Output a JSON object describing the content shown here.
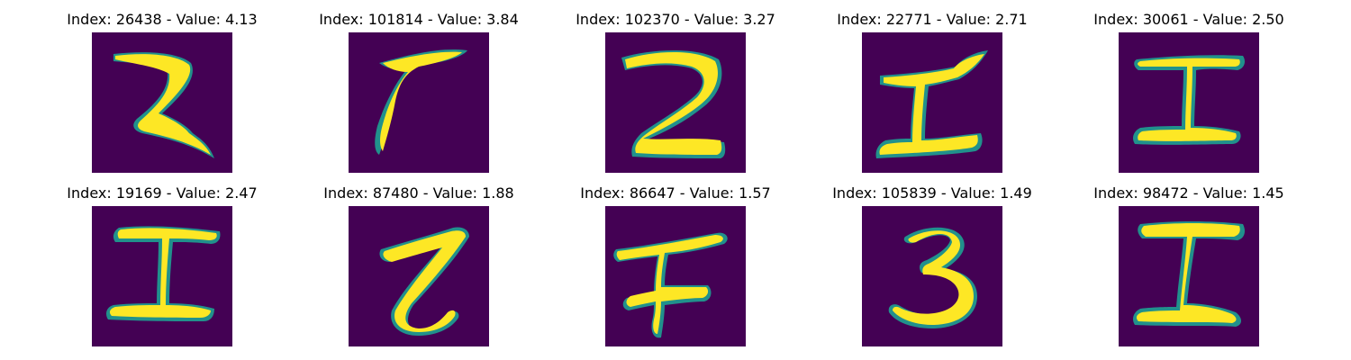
{
  "figure": {
    "colors": {
      "background": "#440154",
      "stroke_edge": "#21918c",
      "stroke_mid": "#5ec962",
      "stroke_core": "#fde725"
    },
    "panels": [
      {
        "index": "26438",
        "value": "4.13",
        "glyph": "2",
        "title": "Index: 26438 - Value: 4.13"
      },
      {
        "index": "101814",
        "value": "3.84",
        "glyph": "7",
        "title": "Index: 101814 - Value: 3.84"
      },
      {
        "index": "102370",
        "value": "3.27",
        "glyph": "2",
        "title": "Index: 102370 - Value: 3.27"
      },
      {
        "index": "22771",
        "value": "2.71",
        "glyph": "I",
        "title": "Index: 22771 - Value: 2.71"
      },
      {
        "index": "30061",
        "value": "2.50",
        "glyph": "I",
        "title": "Index: 30061 - Value: 2.50"
      },
      {
        "index": "19169",
        "value": "2.47",
        "glyph": "I",
        "title": "Index: 19169 - Value: 2.47"
      },
      {
        "index": "87480",
        "value": "1.88",
        "glyph": "Z",
        "title": "Index: 87480 - Value: 1.88"
      },
      {
        "index": "86647",
        "value": "1.57",
        "glyph": "F",
        "title": "Index: 86647 - Value: 1.57"
      },
      {
        "index": "105839",
        "value": "1.49",
        "glyph": "3",
        "title": "Index: 105839 - Value: 1.49"
      },
      {
        "index": "98472",
        "value": "1.45",
        "glyph": "I",
        "title": "Index: 98472 - Value: 1.45"
      }
    ]
  }
}
